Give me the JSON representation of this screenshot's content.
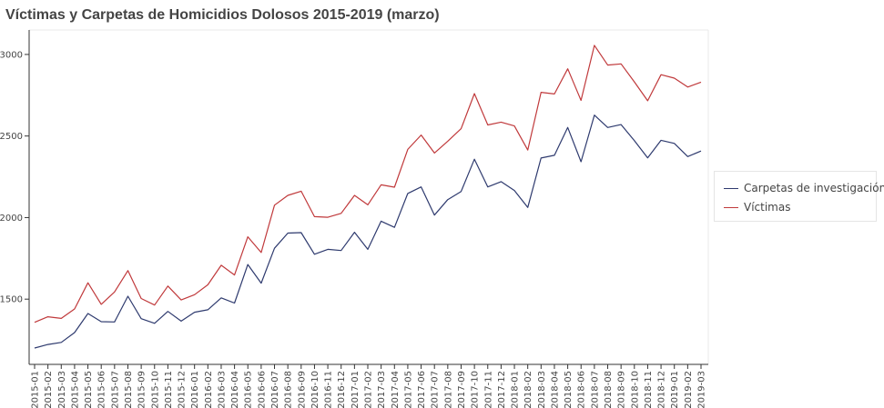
{
  "chart_data": {
    "type": "line",
    "title": "Víctimas y Carpetas de Homicidios Dolosos 2015-2019 (marzo)",
    "xlabel": "",
    "ylabel": "",
    "ylim": [
      1100,
      3150
    ],
    "yticks": [
      1500,
      2000,
      2500,
      3000
    ],
    "grid": false,
    "legend_position": "right",
    "x": [
      "2015-01",
      "2015-02",
      "2015-03",
      "2015-04",
      "2015-05",
      "2015-06",
      "2015-07",
      "2015-08",
      "2015-09",
      "2015-10",
      "2015-11",
      "2015-12",
      "2016-01",
      "2016-02",
      "2016-03",
      "2016-04",
      "2016-05",
      "2016-06",
      "2016-07",
      "2016-08",
      "2016-09",
      "2016-10",
      "2016-11",
      "2016-12",
      "2017-01",
      "2017-02",
      "2017-03",
      "2017-04",
      "2017-05",
      "2017-06",
      "2017-07",
      "2017-08",
      "2017-09",
      "2017-10",
      "2017-11",
      "2017-12",
      "2018-01",
      "2018-02",
      "2018-03",
      "2018-04",
      "2018-05",
      "2018-06",
      "2018-07",
      "2018-08",
      "2018-09",
      "2018-10",
      "2018-11",
      "2018-12",
      "2019-01",
      "2019-02",
      "2019-03"
    ],
    "series": [
      {
        "name": "Carpetas de investigación",
        "color": "#2e3a6e",
        "values": [
          1200,
          1222,
          1235,
          1295,
          1412,
          1362,
          1360,
          1518,
          1380,
          1352,
          1425,
          1365,
          1420,
          1435,
          1508,
          1476,
          1712,
          1598,
          1812,
          1905,
          1908,
          1775,
          1805,
          1798,
          1910,
          1805,
          1978,
          1940,
          2148,
          2188,
          2015,
          2110,
          2160,
          2358,
          2188,
          2220,
          2166,
          2062,
          2365,
          2382,
          2552,
          2342,
          2628,
          2552,
          2570,
          2472,
          2366,
          2474,
          2455,
          2374,
          2408
        ]
      },
      {
        "name": "Víctimas",
        "color": "#c0393b",
        "values": [
          1358,
          1392,
          1382,
          1440,
          1600,
          1468,
          1544,
          1675,
          1504,
          1464,
          1580,
          1495,
          1527,
          1588,
          1708,
          1648,
          1882,
          1786,
          2076,
          2136,
          2162,
          2006,
          2002,
          2026,
          2136,
          2078,
          2201,
          2186,
          2418,
          2506,
          2396,
          2468,
          2545,
          2760,
          2568,
          2585,
          2562,
          2414,
          2768,
          2758,
          2912,
          2718,
          3056,
          2935,
          2942,
          2832,
          2716,
          2876,
          2855,
          2800,
          2830
        ]
      }
    ]
  }
}
